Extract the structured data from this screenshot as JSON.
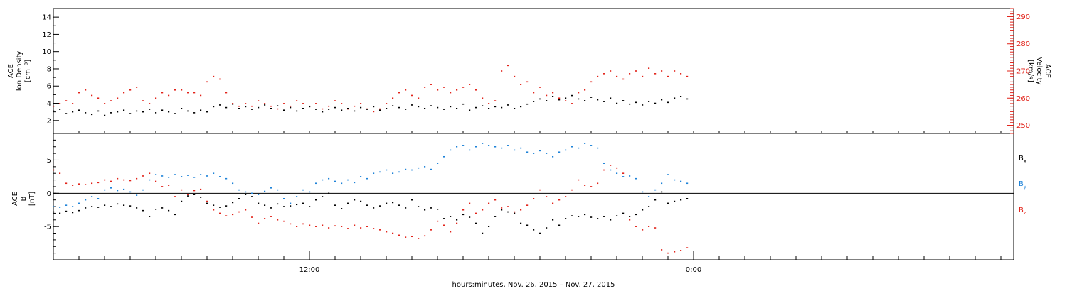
{
  "chart_data": [
    {
      "type": "scatter",
      "panel": "ace-density-velocity",
      "ylabel_left": [
        "ACE",
        "Ion Density",
        "[cm⁻³]"
      ],
      "ylabel_right": [
        "ACE",
        "Velocity",
        "[km/s]"
      ],
      "ylim_left": [
        0.5,
        15
      ],
      "yticks_left": [
        "2",
        "4",
        "6",
        "8",
        "10",
        "12",
        "14"
      ],
      "ylim_right": [
        247,
        293
      ],
      "yticks_right": [
        "250",
        "260",
        "270",
        "280",
        "290"
      ],
      "series": [
        {
          "name": "",
          "axis": "left",
          "color": "#000000",
          "x": [
            0,
            0.5,
            1,
            1.5,
            2,
            2.5,
            3,
            3.5,
            4,
            4.5,
            5,
            5.5,
            6,
            6.5,
            7,
            7.5,
            8,
            8.5,
            9,
            9.5,
            10,
            10.5,
            11,
            11.5,
            12,
            12.5,
            13,
            13.5,
            14,
            14.5,
            15,
            15.5,
            16,
            16.5,
            17,
            17.5,
            18,
            18.5,
            19,
            19.5,
            20,
            20.5,
            21,
            21.5,
            22,
            22.5,
            23,
            23.5,
            24,
            24.5,
            25,
            25.5,
            26,
            26.5,
            27,
            27.5,
            28,
            28.5,
            29,
            29.5,
            30,
            30.5,
            31,
            31.5,
            32,
            32.5,
            33,
            33.5,
            34,
            34.5,
            35,
            35.5,
            36,
            36.5,
            37,
            37.5,
            38,
            38.5,
            39,
            39.5,
            40,
            40.5,
            41,
            41.5,
            42,
            42.5,
            43,
            43.5,
            44,
            44.5,
            45,
            45.5,
            46,
            46.5,
            47,
            47.5,
            48,
            48.5,
            49,
            49.5
          ],
          "y": [
            3.1,
            3.3,
            2.8,
            3.0,
            3.2,
            2.9,
            2.7,
            3.1,
            2.6,
            2.9,
            3.0,
            3.2,
            2.8,
            3.1,
            3.0,
            3.3,
            2.9,
            3.2,
            3.0,
            2.8,
            3.4,
            3.1,
            2.9,
            3.2,
            3.0,
            3.6,
            3.8,
            3.5,
            3.9,
            3.4,
            3.6,
            3.3,
            3.5,
            3.8,
            3.4,
            3.7,
            3.2,
            3.5,
            3.1,
            3.4,
            3.6,
            3.3,
            3.0,
            3.3,
            3.5,
            3.2,
            3.4,
            3.1,
            3.5,
            3.3,
            3.6,
            3.2,
            3.4,
            3.7,
            3.5,
            3.3,
            3.8,
            3.6,
            3.4,
            3.7,
            3.5,
            3.3,
            3.6,
            3.4,
            3.9,
            3.2,
            3.5,
            3.7,
            3.4,
            3.6,
            3.5,
            3.8,
            3.4,
            3.6,
            3.9,
            4.2,
            4.5,
            4.3,
            4.8,
            4.4,
            4.6,
            4.9,
            4.5,
            4.3,
            4.7,
            4.4,
            4.2,
            4.6,
            4.0,
            4.3,
            3.9,
            4.1,
            3.8,
            4.2,
            4.0,
            4.4,
            4.1,
            4.6,
            4.8,
            4.5
          ]
        },
        {
          "name": "",
          "axis": "right",
          "color": "#e2231a",
          "x": [
            0,
            0.5,
            1,
            1.5,
            2,
            2.5,
            3,
            3.5,
            4,
            4.5,
            5,
            5.5,
            6,
            6.5,
            7,
            7.5,
            8,
            8.5,
            9,
            9.5,
            10,
            10.5,
            11,
            11.5,
            12,
            12.5,
            13,
            13.5,
            14,
            14.5,
            15,
            15.5,
            16,
            16.5,
            17,
            17.5,
            18,
            18.5,
            19,
            19.5,
            20,
            20.5,
            21,
            21.5,
            22,
            22.5,
            23,
            23.5,
            24,
            24.5,
            25,
            25.5,
            26,
            26.5,
            27,
            27.5,
            28,
            28.5,
            29,
            29.5,
            30,
            30.5,
            31,
            31.5,
            32,
            32.5,
            33,
            33.5,
            34,
            34.5,
            35,
            35.5,
            36,
            36.5,
            37,
            37.5,
            38,
            38.5,
            39,
            39.5,
            40,
            40.5,
            41,
            41.5,
            42,
            42.5,
            43,
            43.5,
            44,
            44.5,
            45,
            45.5,
            46,
            46.5,
            47,
            47.5,
            48,
            48.5,
            49,
            49.5
          ],
          "y": [
            257,
            258,
            259,
            258,
            262,
            263,
            261,
            260,
            258,
            259,
            260,
            262,
            263,
            264,
            259,
            258,
            260,
            262,
            261,
            263,
            263,
            262,
            262,
            261,
            266,
            268,
            267,
            262,
            258,
            257,
            258,
            257,
            259,
            258,
            257,
            256,
            258,
            257,
            259,
            258,
            257,
            258,
            256,
            257,
            259,
            258,
            256,
            257,
            258,
            256,
            255,
            256,
            258,
            260,
            262,
            263,
            261,
            260,
            264,
            265,
            263,
            264,
            262,
            263,
            264,
            265,
            263,
            260,
            258,
            259,
            270,
            272,
            268,
            265,
            266,
            262,
            264,
            261,
            262,
            260,
            259,
            258,
            262,
            263,
            266,
            268,
            269,
            270,
            268,
            267,
            269,
            270,
            268,
            271,
            269,
            270,
            268,
            270,
            269,
            268
          ]
        }
      ]
    },
    {
      "type": "scatter",
      "panel": "ace-imf-components",
      "ylabel": [
        "ACE",
        "B",
        "[nT]"
      ],
      "ylim": [
        -10,
        9
      ],
      "yticks": [
        "-5",
        "0",
        "5"
      ],
      "series": [
        {
          "name": "Bx",
          "label_main": "B",
          "label_sub": "x",
          "color": "#000000",
          "x": [
            0,
            0.5,
            1,
            1.5,
            2,
            2.5,
            3,
            3.5,
            4,
            4.5,
            5,
            5.5,
            6,
            6.5,
            7,
            7.5,
            8,
            8.5,
            9,
            9.5,
            10,
            10.5,
            11,
            11.5,
            12,
            12.5,
            13,
            13.5,
            14,
            14.5,
            15,
            15.5,
            16,
            16.5,
            17,
            17.5,
            18,
            18.5,
            19,
            19.5,
            20,
            20.5,
            21,
            21.5,
            22,
            22.5,
            23,
            23.5,
            24,
            24.5,
            25,
            25.5,
            26,
            26.5,
            27,
            27.5,
            28,
            28.5,
            29,
            29.5,
            30,
            30.5,
            31,
            31.5,
            32,
            32.5,
            33,
            33.5,
            34,
            34.5,
            35,
            35.5,
            36,
            36.5,
            37,
            37.5,
            38,
            38.5,
            39,
            39.5,
            40,
            40.5,
            41,
            41.5,
            42,
            42.5,
            43,
            43.5,
            44,
            44.5,
            45,
            45.5,
            46,
            46.5,
            47,
            47.5,
            48,
            48.5,
            49,
            49.5
          ],
          "y": [
            -2.8,
            -3.0,
            -2.7,
            -2.9,
            -2.6,
            -2.2,
            -2.0,
            -2.1,
            -1.8,
            -2.0,
            -1.6,
            -1.8,
            -1.9,
            -2.2,
            -2.6,
            -3.5,
            -2.4,
            -2.2,
            -2.6,
            -3.2,
            -1.2,
            -0.4,
            -0.2,
            -0.6,
            -1.5,
            -1.8,
            -2.1,
            -1.9,
            -1.4,
            -0.8,
            -0.2,
            -0.5,
            -1.5,
            -1.8,
            -2.2,
            -1.6,
            -2.0,
            -1.9,
            -1.7,
            -1.5,
            -2.0,
            -1.0,
            -0.5,
            0.0,
            -1.8,
            -2.3,
            -1.5,
            -1.0,
            -1.2,
            -1.8,
            -2.2,
            -1.9,
            -1.5,
            -1.4,
            -1.8,
            -2.2,
            -1.0,
            -2.0,
            -2.5,
            -2.2,
            -2.4,
            -3.8,
            -3.5,
            -4.0,
            -3.2,
            -3.6,
            -4.5,
            -6.0,
            -5.0,
            -3.5,
            -2.5,
            -2.8,
            -3.0,
            -4.5,
            -4.8,
            -5.5,
            -6.0,
            -5.2,
            -4.0,
            -4.8,
            -3.8,
            -3.4,
            -3.5,
            -3.2,
            -3.6,
            -3.8,
            -3.5,
            -4.0,
            -3.4,
            -3.0,
            -3.5,
            -3.2,
            -2.5,
            -2.0,
            -1.0,
            0.2,
            -1.5,
            -1.2,
            -1.0,
            -0.8
          ]
        },
        {
          "name": "By",
          "label_main": "B",
          "label_sub": "y",
          "color": "#1d82d8",
          "x": [
            0,
            0.5,
            1,
            1.5,
            2,
            2.5,
            3,
            3.5,
            4,
            4.5,
            5,
            5.5,
            6,
            6.5,
            7,
            7.5,
            8,
            8.5,
            9,
            9.5,
            10,
            10.5,
            11,
            11.5,
            12,
            12.5,
            13,
            13.5,
            14,
            14.5,
            15,
            15.5,
            16,
            16.5,
            17,
            17.5,
            18,
            18.5,
            19,
            19.5,
            20,
            20.5,
            21,
            21.5,
            22,
            22.5,
            23,
            23.5,
            24,
            24.5,
            25,
            25.5,
            26,
            26.5,
            27,
            27.5,
            28,
            28.5,
            29,
            29.5,
            30,
            30.5,
            31,
            31.5,
            32,
            32.5,
            33,
            33.5,
            34,
            34.5,
            35,
            35.5,
            36,
            36.5,
            37,
            37.5,
            38,
            38.5,
            39,
            39.5,
            40,
            40.5,
            41,
            41.5,
            42,
            42.5,
            43,
            43.5,
            44,
            44.5,
            45,
            45.5,
            46,
            46.5,
            47,
            47.5,
            48,
            48.5,
            49,
            49.5
          ],
          "y": [
            -2.0,
            -2.1,
            -1.8,
            -2.0,
            -1.5,
            -1.0,
            -0.5,
            -0.8,
            0.5,
            0.8,
            0.4,
            0.6,
            0.2,
            -0.3,
            0.5,
            2.0,
            2.8,
            2.6,
            2.4,
            2.8,
            2.5,
            2.7,
            2.4,
            2.8,
            2.6,
            3.0,
            2.5,
            2.2,
            1.5,
            0.5,
            0.2,
            0.0,
            -0.2,
            0.3,
            0.8,
            0.5,
            -0.8,
            -1.5,
            -0.5,
            0.5,
            0.2,
            1.5,
            2.0,
            2.2,
            1.8,
            1.5,
            2.0,
            1.6,
            2.5,
            2.2,
            3.0,
            3.2,
            3.5,
            3.0,
            3.2,
            3.6,
            3.5,
            3.8,
            4.0,
            3.6,
            4.5,
            5.5,
            6.5,
            7.0,
            7.2,
            6.5,
            7.0,
            7.5,
            7.2,
            7.0,
            6.8,
            7.2,
            6.5,
            6.8,
            6.2,
            6.0,
            6.4,
            6.0,
            5.5,
            6.2,
            6.5,
            7.0,
            6.8,
            7.5,
            7.2,
            6.8,
            4.5,
            3.5,
            3.0,
            2.5,
            2.6,
            2.2,
            0.2,
            -0.5,
            0.5,
            1.5,
            2.8,
            2.0,
            1.8,
            1.5
          ]
        },
        {
          "name": "Bz",
          "label_main": "B",
          "label_sub": "z",
          "color": "#e2231a",
          "x": [
            0,
            0.5,
            1,
            1.5,
            2,
            2.5,
            3,
            3.5,
            4,
            4.5,
            5,
            5.5,
            6,
            6.5,
            7,
            7.5,
            8,
            8.5,
            9,
            9.5,
            10,
            10.5,
            11,
            11.5,
            12,
            12.5,
            13,
            13.5,
            14,
            14.5,
            15,
            15.5,
            16,
            16.5,
            17,
            17.5,
            18,
            18.5,
            19,
            19.5,
            20,
            20.5,
            21,
            21.5,
            22,
            22.5,
            23,
            23.5,
            24,
            24.5,
            25,
            25.5,
            26,
            26.5,
            27,
            27.5,
            28,
            28.5,
            29,
            29.5,
            30,
            30.5,
            31,
            31.5,
            32,
            32.5,
            33,
            33.5,
            34,
            34.5,
            35,
            35.5,
            36,
            36.5,
            37,
            37.5,
            38,
            38.5,
            39,
            39.5,
            40,
            40.5,
            41,
            41.5,
            42,
            42.5,
            43,
            43.5,
            44,
            44.5,
            45,
            45.5,
            46,
            46.5,
            47,
            47.5,
            48,
            48.5,
            49,
            49.5
          ],
          "y": [
            3.5,
            3.0,
            1.5,
            1.2,
            1.4,
            1.3,
            1.5,
            1.6,
            2.0,
            1.8,
            2.2,
            2.0,
            1.9,
            2.2,
            2.6,
            3.0,
            1.8,
            1.0,
            1.2,
            -0.5,
            0.5,
            -0.2,
            0.4,
            0.6,
            -1.2,
            -2.5,
            -3.0,
            -3.4,
            -3.2,
            -2.8,
            -2.5,
            -3.6,
            -4.5,
            -3.8,
            -3.5,
            -4.0,
            -4.2,
            -4.6,
            -5.0,
            -4.6,
            -4.8,
            -5.0,
            -4.8,
            -5.2,
            -4.9,
            -5.0,
            -5.3,
            -4.8,
            -5.2,
            -5.0,
            -5.3,
            -5.5,
            -5.8,
            -6.0,
            -6.3,
            -6.6,
            -6.5,
            -6.8,
            -6.4,
            -5.5,
            -4.2,
            -4.8,
            -5.8,
            -4.5,
            -2.5,
            -1.5,
            -3.0,
            -2.5,
            -1.5,
            -1.0,
            -2.2,
            -2.0,
            -2.8,
            -2.5,
            -1.8,
            -0.8,
            0.5,
            -0.5,
            -1.5,
            -1.0,
            -0.5,
            0.5,
            2.0,
            1.2,
            1.0,
            1.5,
            3.5,
            4.2,
            3.8,
            3.0,
            -4.0,
            -5.0,
            -5.5,
            -5.0,
            -5.2,
            -8.5,
            -9.0,
            -8.8,
            -8.6,
            -8.2
          ]
        }
      ]
    }
  ],
  "x_axis": {
    "xlim": [
      0,
      75
    ],
    "minor_tick_step": 2,
    "major_ticks": [
      {
        "x": 20,
        "label": "12:00"
      },
      {
        "x": 50,
        "label": "0:00"
      }
    ],
    "title": "hours:minutes, Nov. 26, 2015 – Nov. 27, 2015"
  }
}
